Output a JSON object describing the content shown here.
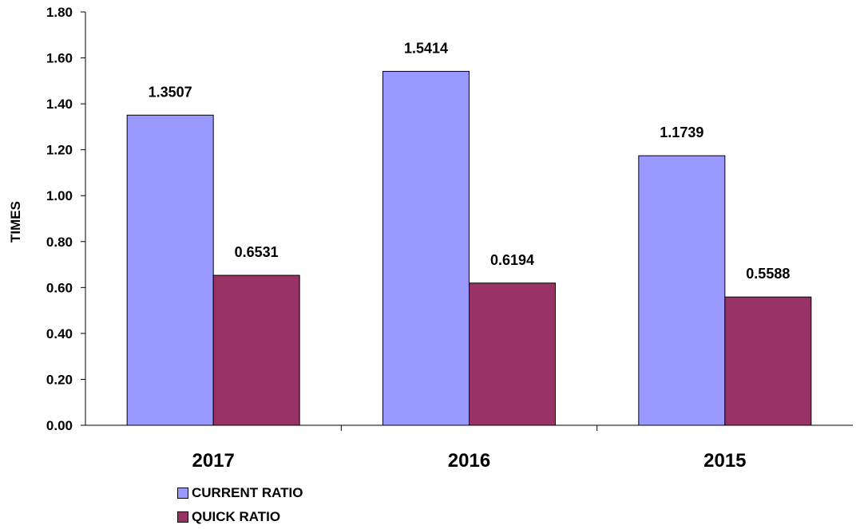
{
  "chart_data": {
    "type": "bar",
    "categories": [
      "2017",
      "2016",
      "2015"
    ],
    "series": [
      {
        "name": "CURRENT RATIO",
        "values": [
          1.3507,
          1.5414,
          1.1739
        ],
        "color": "#9999ff"
      },
      {
        "name": "QUICK RATIO",
        "values": [
          0.6531,
          0.6194,
          0.5588
        ],
        "color": "#993366"
      }
    ],
    "data_labels": [
      [
        "1.3507",
        "1.5414",
        "1.1739"
      ],
      [
        "0.6531",
        "0.6194",
        "0.5588"
      ]
    ],
    "ylabel": "TIMES",
    "xlabel": "",
    "ylim": [
      0,
      1.8
    ],
    "yticks": [
      "0.00",
      "0.20",
      "0.40",
      "0.60",
      "0.80",
      "1.00",
      "1.20",
      "1.40",
      "1.60",
      "1.80"
    ],
    "grid": false,
    "legend_position": "bottom"
  }
}
